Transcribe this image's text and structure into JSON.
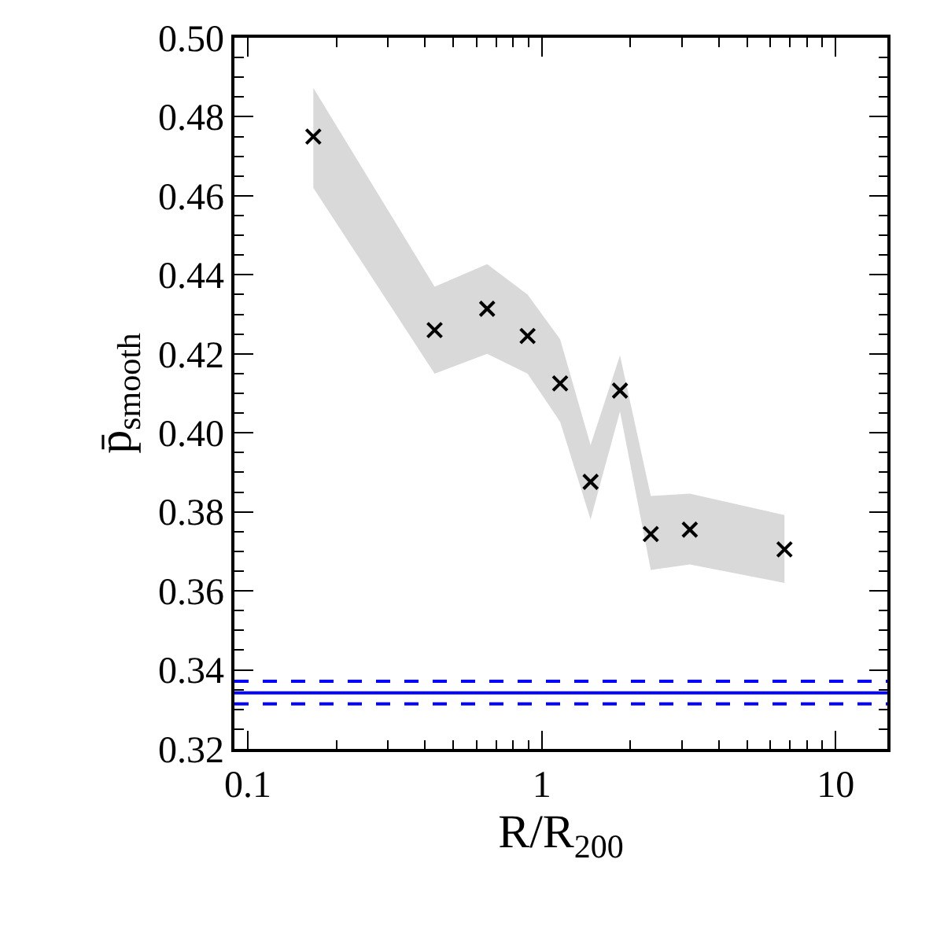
{
  "chart_data": {
    "type": "scatter",
    "xlabel": "R/R$_{200}$",
    "ylabel": "p̄$_{smooth}$",
    "x": [
      0.167,
      0.432,
      0.652,
      0.895,
      1.155,
      1.466,
      1.846,
      2.35,
      3.19,
      6.7
    ],
    "series": [
      {
        "color": "#000000",
        "values": [
          0.475,
          0.426,
          0.4314,
          0.4245,
          0.4125,
          0.3876,
          0.4107,
          0.3744,
          0.3755,
          0.3705
        ],
        "lower": [
          0.462,
          0.415,
          0.42,
          0.415,
          0.4028,
          0.3781,
          0.4054,
          0.3653,
          0.3667,
          0.362
        ],
        "upper": [
          0.4873,
          0.437,
          0.4427,
          0.435,
          0.4237,
          0.3969,
          0.4196,
          0.384,
          0.3846,
          0.3792
        ]
      }
    ],
    "ref_lines": [
      {
        "axis": "y",
        "value": 0.3342,
        "color": "#0000ff",
        "line_style": "solid"
      },
      {
        "axis": "y",
        "value": 0.3371,
        "color": "#0000ff",
        "line_style": "dashed"
      },
      {
        "axis": "y",
        "value": 0.3314,
        "color": "#0000ff",
        "line_style": "dashed"
      }
    ],
    "log": "x",
    "xlim": [
      0.09,
      15
    ],
    "xticks": [
      0.1,
      1,
      10
    ],
    "ylim": [
      0.32,
      0.5
    ],
    "yticks": [
      {
        "value": 0.32,
        "label": "0.32"
      },
      {
        "value": 0.34,
        "label": "0.34"
      },
      {
        "value": 0.36,
        "label": "0.36"
      },
      {
        "value": 0.38,
        "label": "0.38"
      },
      {
        "value": 0.4,
        "label": "0.40"
      },
      {
        "value": 0.42,
        "label": "0.42"
      },
      {
        "value": 0.44,
        "label": "0.44"
      },
      {
        "value": 0.46,
        "label": "0.46"
      },
      {
        "value": 0.48,
        "label": "0.48"
      },
      {
        "value": 0.5,
        "label": "0.50"
      }
    ],
    "marker": "cross"
  }
}
